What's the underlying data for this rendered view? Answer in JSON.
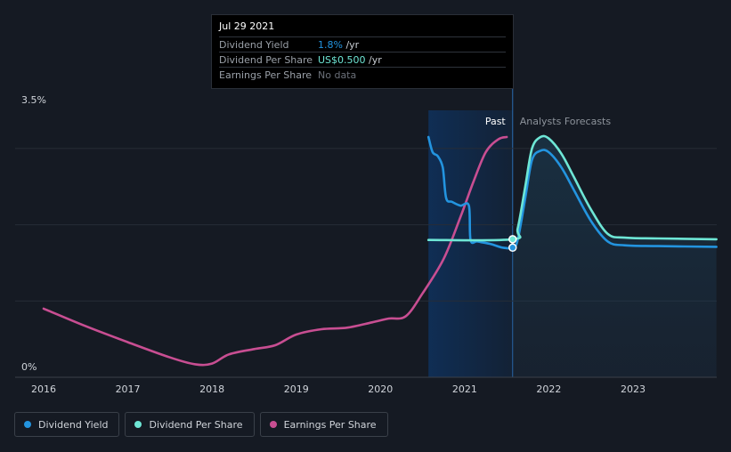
{
  "colors": {
    "dividend_yield": "#2394df",
    "dividend_per_share": "#6ee6d5",
    "earnings_per_share": "#c84e92",
    "background": "#151a23",
    "past_band": "#0e2f55"
  },
  "tooltip": {
    "date": "Jul 29 2021",
    "rows": [
      {
        "label": "Dividend Yield",
        "value": "1.8%",
        "unit": " /yr"
      },
      {
        "label": "Dividend Per Share",
        "value": "US$0.500",
        "unit": " /yr"
      },
      {
        "label": "Earnings Per Share",
        "value": "No data",
        "unit": ""
      }
    ]
  },
  "legend": {
    "items": [
      {
        "label": "Dividend Yield"
      },
      {
        "label": "Dividend Per Share"
      },
      {
        "label": "Earnings Per Share"
      }
    ]
  },
  "chart_data": {
    "type": "line",
    "y_tick_labels": [
      "3.5%",
      "0%"
    ],
    "ylim": [
      0,
      3.5
    ],
    "xlim": [
      2015.7,
      2023.99
    ],
    "x_tick_labels": [
      "2016",
      "2017",
      "2018",
      "2019",
      "2020",
      "2021",
      "2022",
      "2023"
    ],
    "x_ticks": [
      2016,
      2017,
      2018,
      2019,
      2020,
      2021,
      2022,
      2023
    ],
    "past_label": "Past",
    "forecast_label": "Analysts Forecasts",
    "past_band": [
      2020.57,
      2021.57
    ],
    "grid": true,
    "series": [
      {
        "name": "Dividend Yield",
        "key": "dividend_yield",
        "points": [
          [
            2020.57,
            3.15
          ],
          [
            2020.62,
            2.95
          ],
          [
            2020.68,
            2.9
          ],
          [
            2020.74,
            2.75
          ],
          [
            2020.78,
            2.35
          ],
          [
            2020.85,
            2.3
          ],
          [
            2020.95,
            2.25
          ],
          [
            2021.05,
            2.25
          ],
          [
            2021.07,
            1.8
          ],
          [
            2021.15,
            1.78
          ],
          [
            2021.3,
            1.75
          ],
          [
            2021.45,
            1.7
          ],
          [
            2021.57,
            1.7
          ],
          [
            2021.63,
            1.8
          ],
          [
            2021.72,
            2.35
          ],
          [
            2021.8,
            2.85
          ],
          [
            2021.9,
            2.97
          ],
          [
            2022.0,
            2.95
          ],
          [
            2022.15,
            2.75
          ],
          [
            2022.3,
            2.45
          ],
          [
            2022.5,
            2.05
          ],
          [
            2022.7,
            1.78
          ],
          [
            2022.9,
            1.73
          ],
          [
            2023.3,
            1.72
          ],
          [
            2023.99,
            1.71
          ]
        ]
      },
      {
        "name": "Dividend Per Share",
        "key": "dividend_per_share",
        "points": [
          [
            2020.57,
            1.8
          ],
          [
            2021.57,
            1.81
          ],
          [
            2021.63,
            1.95
          ],
          [
            2021.72,
            2.5
          ],
          [
            2021.8,
            3.0
          ],
          [
            2021.9,
            3.15
          ],
          [
            2022.0,
            3.13
          ],
          [
            2022.15,
            2.93
          ],
          [
            2022.3,
            2.62
          ],
          [
            2022.5,
            2.2
          ],
          [
            2022.7,
            1.88
          ],
          [
            2022.9,
            1.83
          ],
          [
            2023.3,
            1.82
          ],
          [
            2023.99,
            1.81
          ]
        ]
      },
      {
        "name": "Earnings Per Share",
        "key": "earnings_per_share",
        "points": [
          [
            2016.0,
            0.9
          ],
          [
            2016.5,
            0.67
          ],
          [
            2017.0,
            0.46
          ],
          [
            2017.5,
            0.26
          ],
          [
            2017.8,
            0.17
          ],
          [
            2018.0,
            0.18
          ],
          [
            2018.2,
            0.3
          ],
          [
            2018.5,
            0.37
          ],
          [
            2018.75,
            0.42
          ],
          [
            2019.0,
            0.56
          ],
          [
            2019.3,
            0.63
          ],
          [
            2019.6,
            0.65
          ],
          [
            2019.9,
            0.72
          ],
          [
            2020.1,
            0.77
          ],
          [
            2020.3,
            0.8
          ],
          [
            2020.5,
            1.1
          ],
          [
            2020.75,
            1.55
          ],
          [
            2020.95,
            2.1
          ],
          [
            2021.1,
            2.55
          ],
          [
            2021.25,
            2.95
          ],
          [
            2021.4,
            3.12
          ],
          [
            2021.5,
            3.15
          ]
        ]
      }
    ]
  }
}
